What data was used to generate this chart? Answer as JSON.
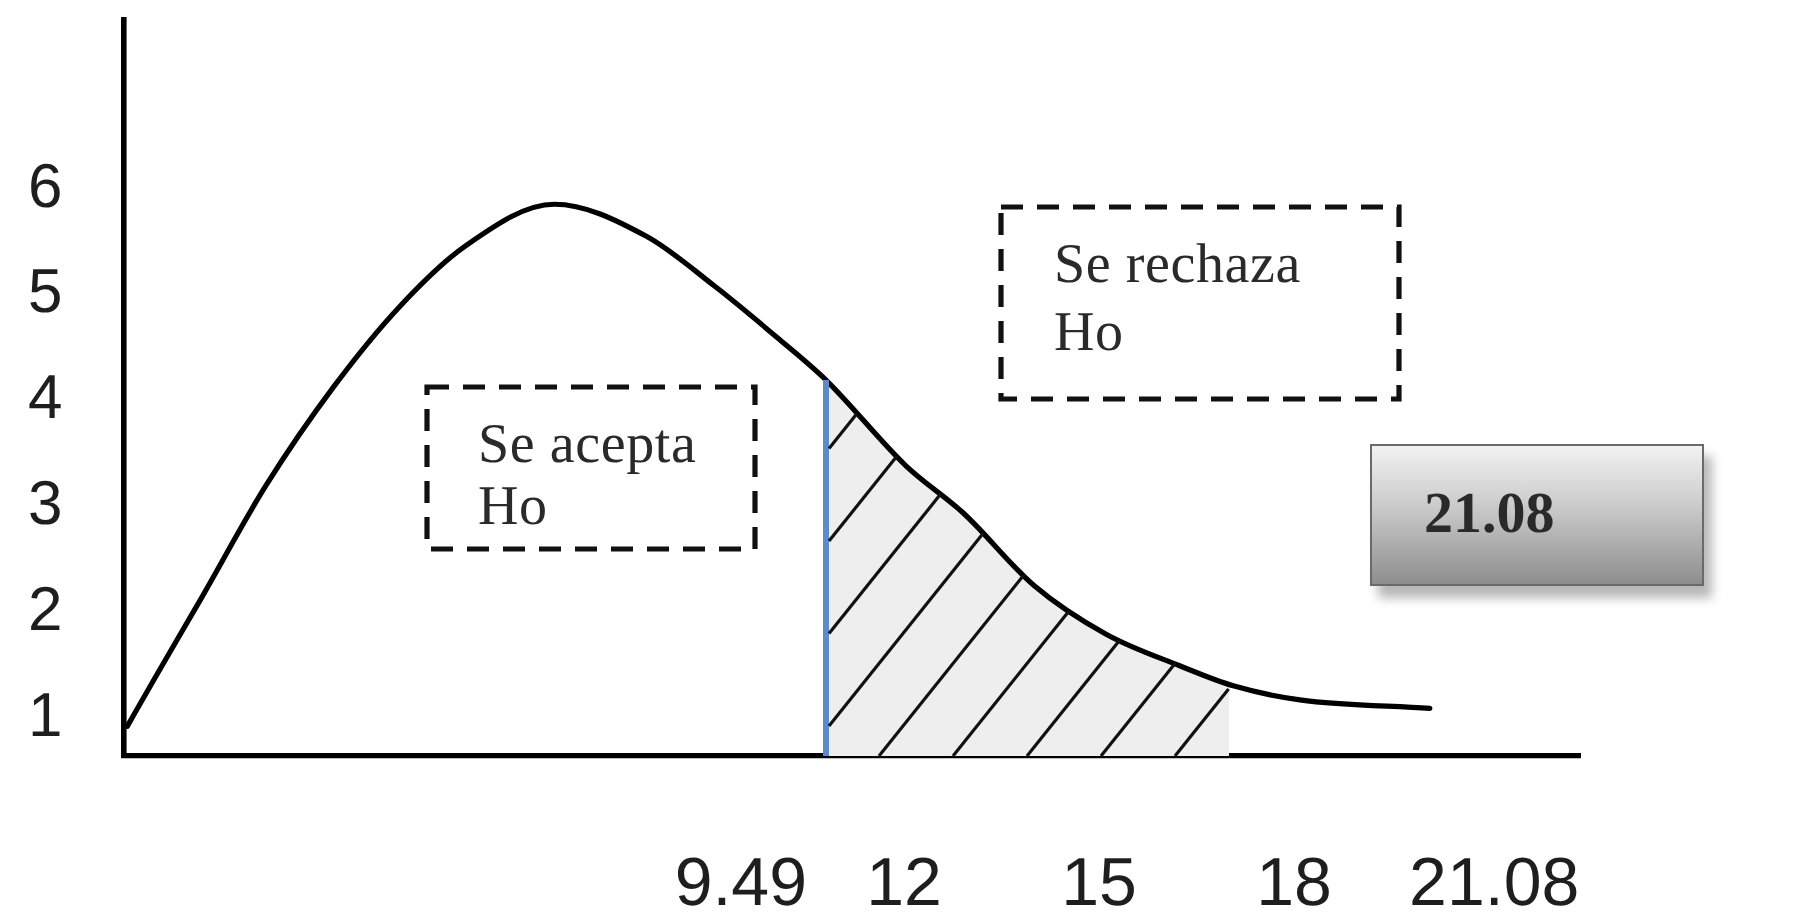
{
  "chart_data": {
    "type": "line",
    "x": [
      0.05,
      0.46,
      1.17,
      2.18,
      3.23,
      4.25,
      5.26,
      6.62,
      8.03,
      9.08,
      10.09,
      10.8,
      12.03,
      12.92,
      14.0,
      15.11,
      16.25,
      17.08,
      18.09,
      20.09
    ],
    "series": [
      {
        "color": "#000000",
        "values": [
          0.93,
          1.37,
          2.12,
          3.2,
          4.14,
          4.9,
          5.47,
          5.86,
          5.56,
          5.09,
          4.58,
          4.2,
          3.39,
          2.94,
          2.26,
          1.8,
          1.5,
          1.31,
          1.18,
          1.1
        ]
      },
      {
        "type": "area",
        "color": "#eeeeee",
        "x": [
          10.8,
          12.03,
          12.92,
          14.0,
          15.11,
          16.25,
          17.0
        ],
        "values": [
          4.2,
          3.39,
          2.94,
          2.26,
          1.8,
          1.5,
          1.33
        ]
      }
    ],
    "xlim": [
      0,
      22.4
    ],
    "xticks": [
      9.49,
      12,
      15,
      18,
      21.08
    ],
    "ylim": [
      0.65,
      7.6
    ],
    "yticks": [
      1,
      2,
      3,
      4,
      5,
      6
    ],
    "ref_lines": [
      {
        "axis": "x",
        "value": 10.8,
        "color": "#5b8bc9"
      }
    ],
    "annotations": [
      "Se acepta Ho",
      "Se rechaza Ho",
      "21.08"
    ],
    "grid": false,
    "marker": "none"
  }
}
